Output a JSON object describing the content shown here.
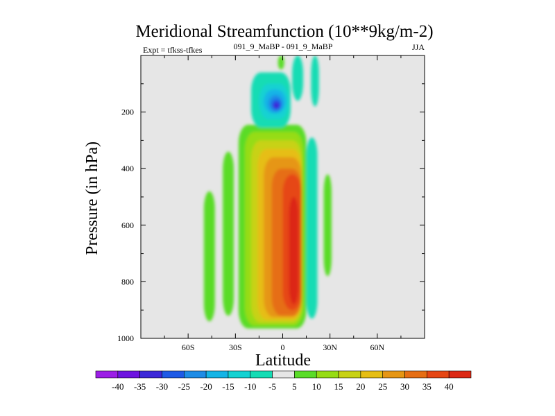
{
  "chart_data": {
    "type": "heatmap",
    "title": "Meridional Streamfunction (10**9kg/m-2)",
    "subtitle_left": "Expt = tfkss-tfkes",
    "subtitle_center": "091_9_MaBP - 091_9_MaBP",
    "subtitle_right": "JJA",
    "xlabel": "Latitude",
    "ylabel": "Pressure (in hPa)",
    "x_ticks": [
      {
        "value": -60,
        "label": "60S"
      },
      {
        "value": -30,
        "label": "30S"
      },
      {
        "value": 0,
        "label": "0"
      },
      {
        "value": 30,
        "label": "30N"
      },
      {
        "value": 60,
        "label": "60N"
      }
    ],
    "y_ticks": [
      {
        "value": 200,
        "label": "200"
      },
      {
        "value": 400,
        "label": "400"
      },
      {
        "value": 600,
        "label": "600"
      },
      {
        "value": 800,
        "label": "800"
      },
      {
        "value": 1000,
        "label": "1000"
      }
    ],
    "xlim": [
      -90,
      90
    ],
    "ylim": [
      1000,
      0
    ],
    "background_color": "#e6e6e6",
    "colorbar": {
      "labels": [
        "-40",
        "-35",
        "-30",
        "-25",
        "-20",
        "-15",
        "-10",
        "-5",
        "5",
        "10",
        "15",
        "20",
        "25",
        "30",
        "35",
        "40"
      ],
      "colors": [
        "#9c1ee6",
        "#6e14e0",
        "#3c28d8",
        "#1e5ae6",
        "#1e8ce6",
        "#14b4e6",
        "#14d2d2",
        "#14dcb4",
        "#e6e6e6",
        "#5adc28",
        "#96dc14",
        "#c8d214",
        "#e6be14",
        "#e69614",
        "#e66e14",
        "#e64614",
        "#dc2814"
      ]
    },
    "cells": [
      {
        "lat": [
          -50,
          -43
        ],
        "p": [
          480,
          940
        ],
        "level": 5
      },
      {
        "lat": [
          -38,
          -31
        ],
        "p": [
          340,
          920
        ],
        "level": 5
      },
      {
        "lat": [
          -28,
          15
        ],
        "p": [
          245,
          965
        ],
        "level": 5
      },
      {
        "lat": [
          -24,
          13
        ],
        "p": [
          270,
          955
        ],
        "level": 10
      },
      {
        "lat": [
          -20,
          12
        ],
        "p": [
          300,
          945
        ],
        "level": 15
      },
      {
        "lat": [
          -16,
          12
        ],
        "p": [
          330,
          935
        ],
        "level": 20
      },
      {
        "lat": [
          -12,
          12
        ],
        "p": [
          360,
          925
        ],
        "level": 25
      },
      {
        "lat": [
          -7,
          12
        ],
        "p": [
          400,
          920
        ],
        "level": 30
      },
      {
        "lat": [
          0,
          12
        ],
        "p": [
          420,
          900
        ],
        "level": 35
      },
      {
        "lat": [
          4,
          10
        ],
        "p": [
          500,
          880
        ],
        "level": 40
      },
      {
        "lat": [
          15,
          22
        ],
        "p": [
          290,
          930
        ],
        "level": -5
      },
      {
        "lat": [
          26,
          31
        ],
        "p": [
          420,
          780
        ],
        "level": 5
      },
      {
        "lat": [
          -20,
          5
        ],
        "p": [
          60,
          255
        ],
        "level": -5
      },
      {
        "lat": [
          -15,
          4
        ],
        "p": [
          100,
          225
        ],
        "level": -10
      },
      {
        "lat": [
          -12,
          2
        ],
        "p": [
          120,
          205
        ],
        "level": -15
      },
      {
        "lat": [
          -9,
          0
        ],
        "p": [
          140,
          200
        ],
        "level": -20
      },
      {
        "lat": [
          -7,
          -1
        ],
        "p": [
          155,
          192
        ],
        "level": -25
      },
      {
        "lat": [
          -6,
          -2
        ],
        "p": [
          165,
          188
        ],
        "level": -30
      },
      {
        "lat": [
          -3,
          1
        ],
        "p": [
          0,
          50
        ],
        "level": 5
      },
      {
        "lat": [
          6,
          13
        ],
        "p": [
          0,
          160
        ],
        "level": -5
      },
      {
        "lat": [
          18,
          23
        ],
        "p": [
          0,
          180
        ],
        "level": -5
      }
    ]
  }
}
